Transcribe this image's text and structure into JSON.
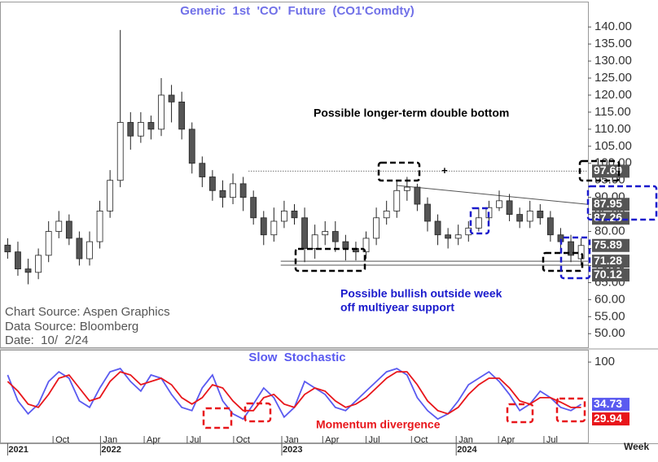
{
  "chart_data": [
    {
      "type": "candlestick",
      "title": "Generic  1st  'CO'  Future  (CO1'Comdty)",
      "x": [
        0,
        3,
        6,
        9,
        12,
        15,
        18,
        21,
        24,
        27,
        30,
        33,
        36,
        39,
        42,
        45,
        48,
        51,
        54,
        57,
        60,
        63,
        66,
        69,
        72,
        75,
        78,
        81,
        84,
        87,
        90,
        93,
        96,
        99,
        102,
        105,
        108,
        111,
        114,
        117,
        120,
        123,
        126,
        129,
        132,
        135,
        138,
        141,
        144,
        147,
        150,
        153,
        156,
        159,
        162,
        165,
        168
      ],
      "open": [
        76,
        74,
        69,
        68,
        73,
        80,
        83,
        78,
        72,
        77,
        86,
        95,
        112,
        108,
        112,
        110,
        120,
        118,
        110,
        100,
        96,
        92,
        90,
        94,
        90,
        84,
        79,
        83,
        86,
        84,
        75,
        79,
        80,
        77,
        75,
        74,
        78,
        84,
        86,
        92,
        93,
        88,
        83,
        79,
        78,
        79,
        81,
        84,
        87,
        89,
        85,
        83,
        86,
        84,
        79,
        77,
        72
      ],
      "high": [
        78,
        77,
        72,
        75,
        83,
        86,
        85,
        80,
        80,
        89,
        98,
        139.1,
        115,
        115,
        114,
        125,
        123,
        121,
        112,
        102,
        98,
        95,
        97,
        96,
        92,
        86,
        87,
        89,
        88,
        87,
        82,
        83,
        83,
        79,
        77,
        80,
        87,
        89,
        95,
        96,
        94,
        90,
        85,
        81,
        82,
        83,
        87,
        89,
        92,
        91,
        87,
        89,
        88,
        86,
        81,
        79,
        78
      ],
      "low": [
        72,
        67,
        64.5,
        66,
        71,
        78,
        76,
        70,
        70,
        75,
        84,
        93,
        104,
        106,
        107,
        108,
        112,
        107,
        97,
        93,
        89,
        87,
        88,
        86,
        82,
        76,
        77,
        81,
        82,
        71,
        72,
        76,
        74,
        71.5,
        71.5,
        72,
        76,
        82,
        84,
        89,
        86,
        80,
        76,
        75,
        76,
        77,
        80,
        83,
        86,
        83,
        81,
        81,
        82,
        77,
        75,
        71,
        70.12
      ],
      "close": [
        74,
        69,
        68,
        73,
        80,
        83,
        78,
        72,
        77,
        86,
        95,
        112,
        108,
        112,
        110,
        120,
        118,
        110,
        100,
        96,
        92,
        90,
        94,
        90,
        84,
        79,
        83,
        86,
        84,
        75,
        79,
        80,
        77,
        75,
        74,
        78,
        84,
        86,
        92,
        93,
        88,
        83,
        79,
        78,
        79,
        81,
        84,
        87,
        89,
        85,
        83,
        86,
        84,
        79,
        77,
        73,
        75.89
      ],
      "up_color": "#ffffff",
      "down_color": "#555555",
      "xlim": [
        -2,
        170
      ],
      "ylim": [
        46,
        147.2
      ],
      "yticks": [
        {
          "value": 50,
          "label": "50.00"
        },
        {
          "value": 55,
          "label": "55.00"
        },
        {
          "value": 60,
          "label": "60.00"
        },
        {
          "value": 65,
          "label": "65.00"
        },
        {
          "value": 70,
          "label": "70.00"
        },
        {
          "value": 75,
          "label": "75.00"
        },
        {
          "value": 80,
          "label": "80.00"
        },
        {
          "value": 85,
          "label": "85.00"
        },
        {
          "value": 90,
          "label": "90.00"
        },
        {
          "value": 95,
          "label": "95.00"
        },
        {
          "value": 100,
          "label": "100.00"
        },
        {
          "value": 105,
          "label": "105.00"
        },
        {
          "value": 110,
          "label": "110.00"
        },
        {
          "value": 115,
          "label": "115.00"
        },
        {
          "value": 120,
          "label": "120.00"
        },
        {
          "value": 125,
          "label": "125.00"
        },
        {
          "value": 130,
          "label": "130.00"
        },
        {
          "value": 135,
          "label": "135.00"
        },
        {
          "value": 140,
          "label": "140.00"
        }
      ],
      "price_labels": [
        97.69,
        87.95,
        87.26,
        75.89,
        71.28,
        70.12
      ],
      "note_top": "Possible longer-term double bottom",
      "note_bullish": [
        "Possible bullish outside week",
        "off multiyear support"
      ],
      "sources": [
        "Chart Source: Aspen Graphics",
        "Data Source: Bloomberg",
        "Date:  10/  2/24"
      ]
    },
    {
      "type": "line",
      "title": "Slow  Stochastic",
      "x": [
        0,
        3,
        6,
        9,
        12,
        15,
        18,
        21,
        24,
        27,
        30,
        33,
        36,
        39,
        42,
        45,
        48,
        51,
        54,
        57,
        60,
        63,
        66,
        69,
        72,
        75,
        78,
        81,
        84,
        87,
        90,
        93,
        96,
        99,
        102,
        105,
        108,
        111,
        114,
        117,
        120,
        123,
        126,
        129,
        132,
        135,
        138,
        141,
        144,
        147,
        150,
        153,
        156,
        159,
        162,
        165,
        168
      ],
      "series": [
        {
          "color": "#5a5af0",
          "values": [
            80,
            40,
            20,
            35,
            70,
            85,
            75,
            40,
            30,
            60,
            85,
            90,
            70,
            55,
            80,
            75,
            50,
            30,
            25,
            60,
            80,
            40,
            20,
            12,
            35,
            60,
            45,
            15,
            30,
            70,
            60,
            50,
            30,
            25,
            40,
            55,
            70,
            85,
            90,
            80,
            45,
            25,
            12,
            20,
            40,
            65,
            75,
            85,
            70,
            50,
            25,
            35,
            55,
            45,
            30,
            25,
            34.73
          ]
        },
        {
          "color": "#e8161b",
          "values": [
            70,
            55,
            35,
            30,
            50,
            75,
            80,
            60,
            40,
            45,
            70,
            85,
            80,
            65,
            70,
            75,
            65,
            45,
            35,
            45,
            65,
            60,
            40,
            25,
            25,
            45,
            50,
            35,
            30,
            50,
            60,
            55,
            40,
            30,
            35,
            45,
            60,
            75,
            85,
            85,
            65,
            40,
            25,
            20,
            30,
            50,
            65,
            75,
            75,
            60,
            40,
            35,
            45,
            45,
            38,
            30,
            29.94
          ]
        }
      ],
      "xlim": [
        -2,
        170
      ],
      "ylim": [
        -23,
        116.5
      ],
      "yticks": [
        100
      ],
      "xticks": [
        {
          "value": 13.3,
          "label": "Oct"
        },
        {
          "value": 27.2,
          "label": "Jan"
        },
        {
          "value": 40,
          "label": "Apr"
        },
        {
          "value": 52.6,
          "label": "Jul"
        },
        {
          "value": 66.2,
          "label": "Oct"
        },
        {
          "value": 80.3,
          "label": "Jan"
        },
        {
          "value": 92.3,
          "label": "Apr"
        },
        {
          "value": 105,
          "label": "Jul"
        },
        {
          "value": 118.3,
          "label": "Oct"
        },
        {
          "value": 131.4,
          "label": "Jan"
        },
        {
          "value": 143.8,
          "label": "Apr"
        },
        {
          "value": 157.1,
          "label": "Jul"
        }
      ],
      "year_ticks": [
        {
          "value": 0,
          "label": "2021"
        },
        {
          "value": 27.2,
          "label": "2022"
        },
        {
          "value": 80.3,
          "label": "2023"
        },
        {
          "value": 131.4,
          "label": "2024"
        }
      ],
      "x_label": "Week",
      "note": "Momentum divergence"
    }
  ]
}
